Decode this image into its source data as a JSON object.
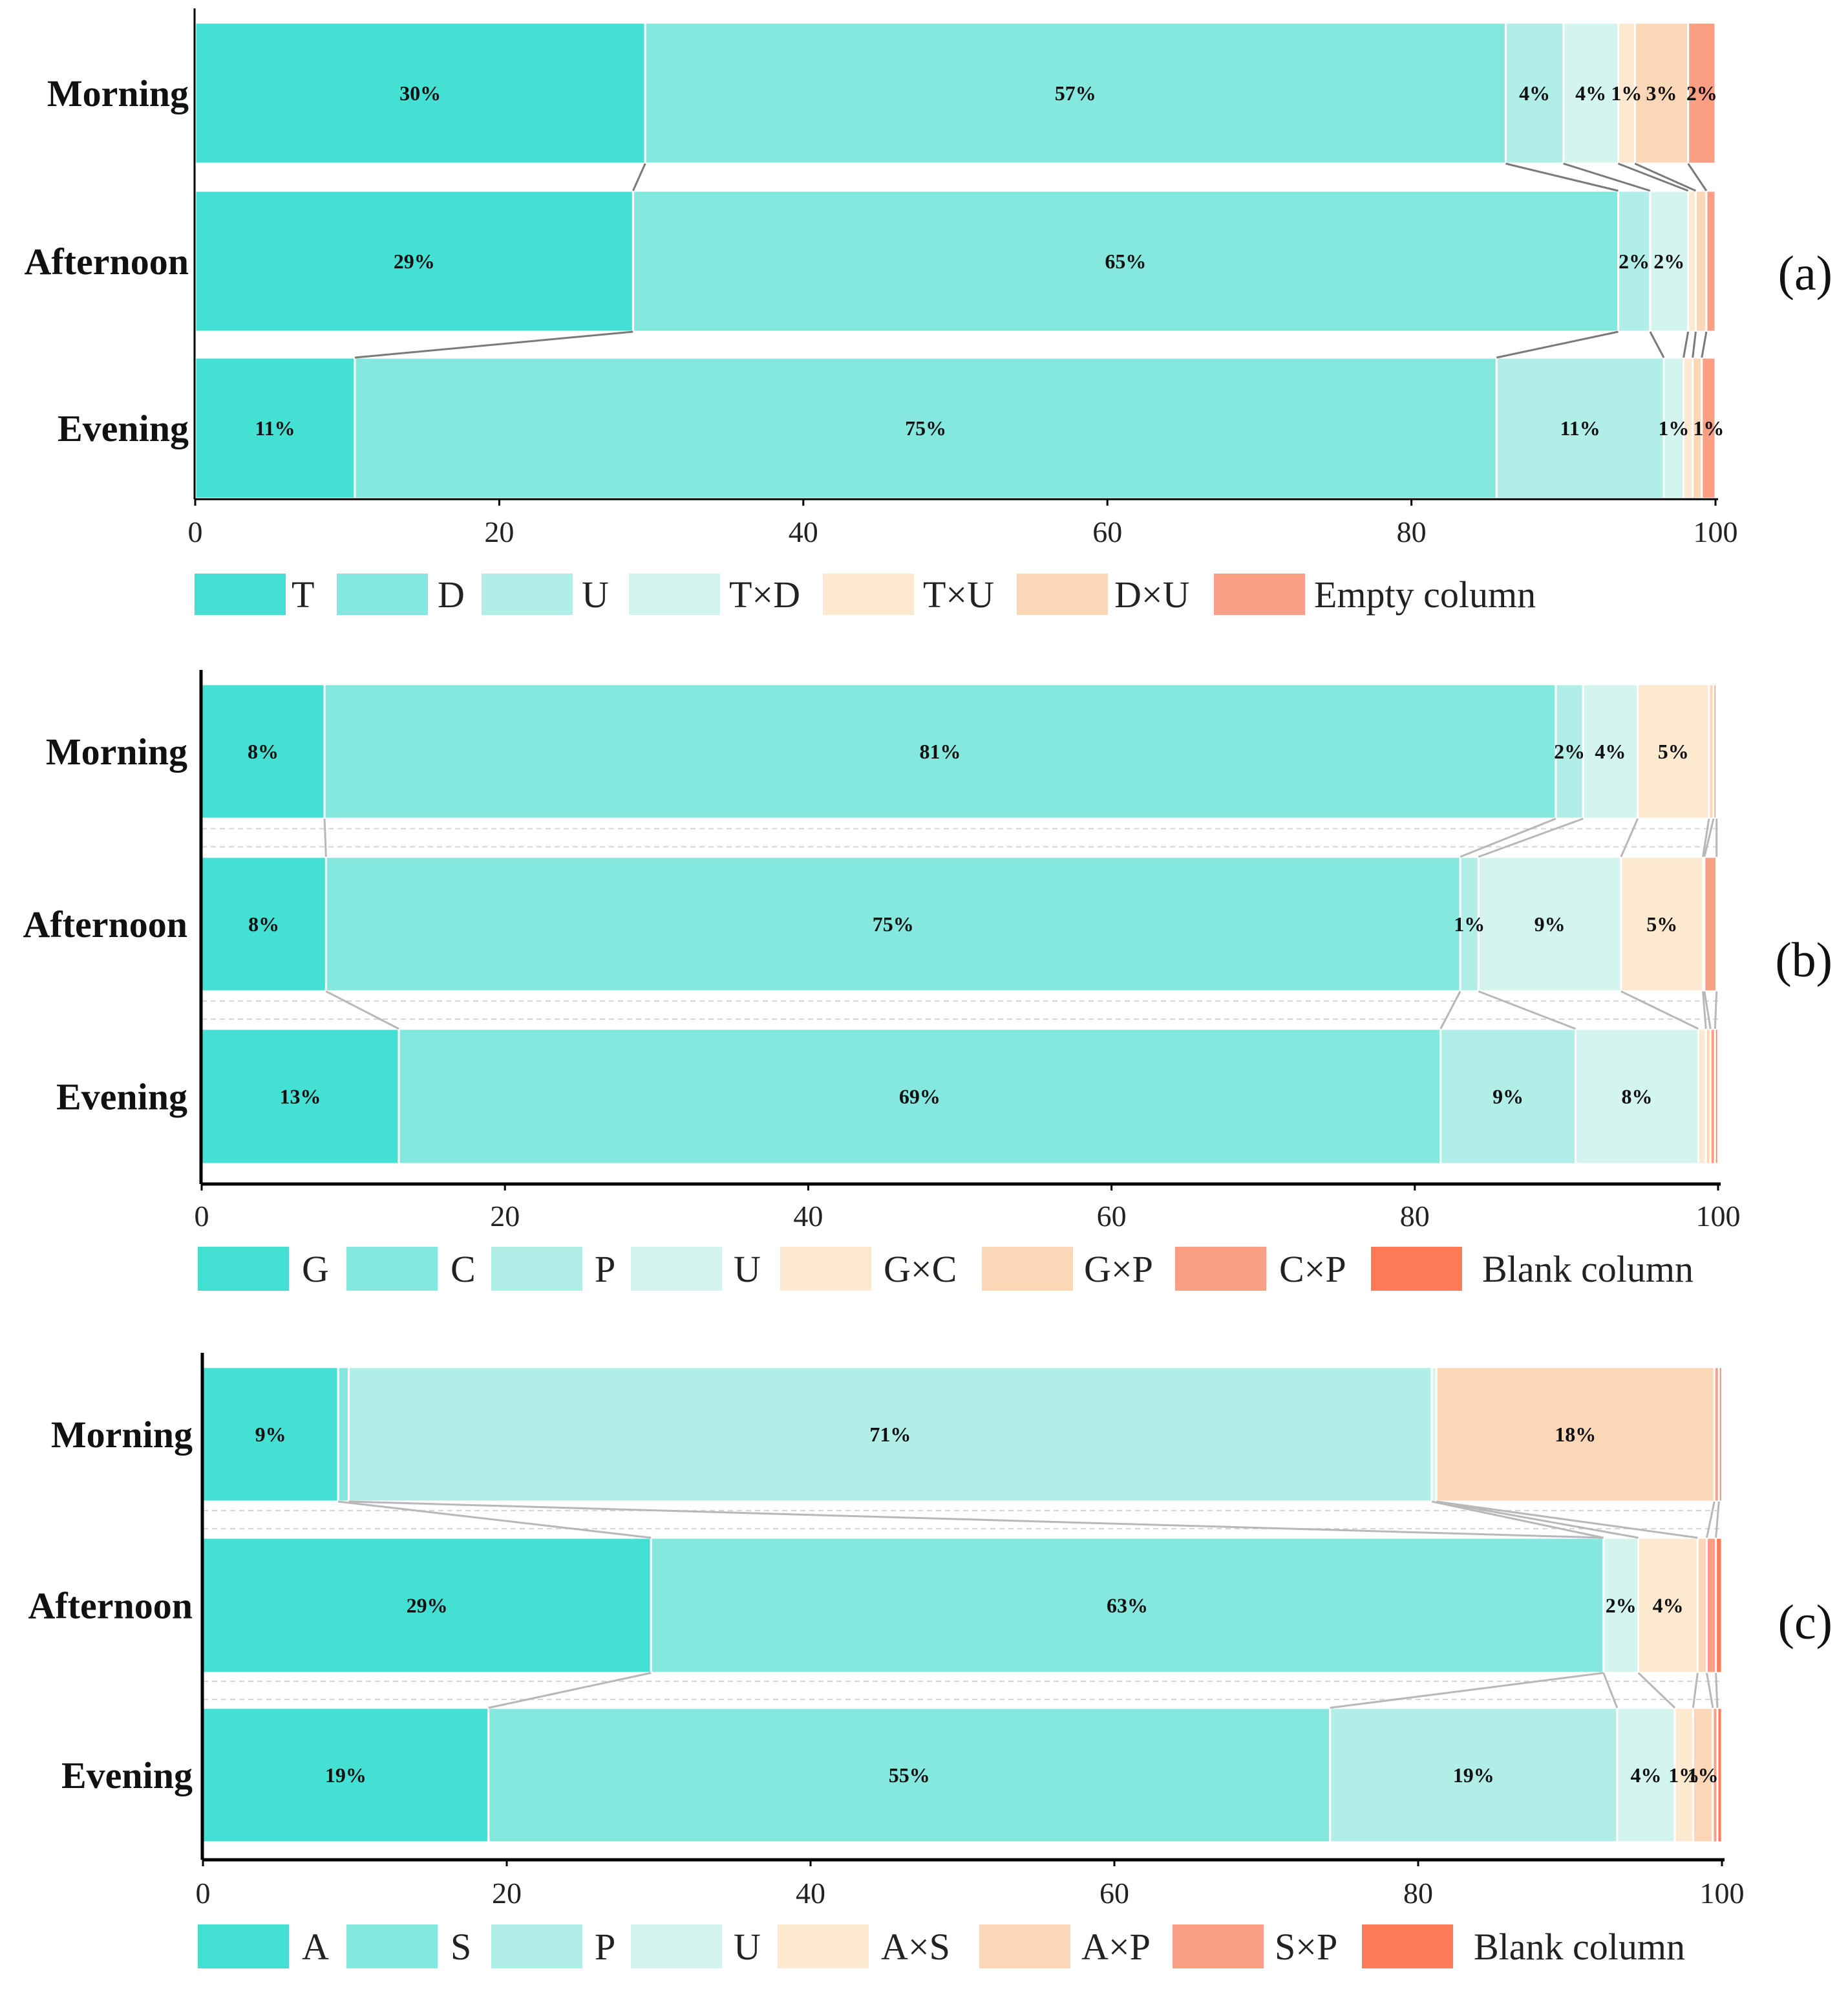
{
  "chart_data": [
    {
      "type": "bar",
      "orientation": "horizontal",
      "stacked": true,
      "panel_label": "(a)",
      "categories": [
        "Morning",
        "Afternoon",
        "Evening"
      ],
      "series": [
        {
          "name": "T",
          "color": "#45E0D4",
          "values": [
            29.6,
            28.8,
            10.5
          ],
          "labels": [
            "30%",
            "29%",
            "11%"
          ]
        },
        {
          "name": "D",
          "color": "#84E8DE",
          "values": [
            56.6,
            64.8,
            75.1
          ],
          "labels": [
            "57%",
            "65%",
            "75%"
          ]
        },
        {
          "name": "U",
          "color": "#B2EEE8",
          "values": [
            3.8,
            2.1,
            11.0
          ],
          "labels": [
            "4%",
            "2%",
            "11%"
          ]
        },
        {
          "name": "T×D",
          "color": "#D4F4EF",
          "values": [
            3.6,
            2.5,
            1.3
          ],
          "labels": [
            "4%",
            "2%",
            "1%"
          ]
        },
        {
          "name": "T×U",
          "color": "#FDE8D0",
          "values": [
            1.1,
            0.5,
            0.6
          ],
          "labels": [
            "1%",
            "",
            ""
          ]
        },
        {
          "name": "D×U",
          "color": "#FCD7B7",
          "values": [
            3.5,
            0.7,
            0.6
          ],
          "labels": [
            "3%",
            "",
            ""
          ]
        },
        {
          "name": "Empty column",
          "color": "#FA9E84",
          "values": [
            1.8,
            0.6,
            0.9
          ],
          "labels": [
            "2%",
            "",
            "1%"
          ]
        }
      ],
      "xlim": [
        0,
        100
      ],
      "xticks": [
        "0",
        "20",
        "40",
        "60",
        "80",
        "100"
      ],
      "legend": "bottom"
    },
    {
      "type": "bar",
      "orientation": "horizontal",
      "stacked": true,
      "panel_label": "(b)",
      "categories": [
        "Morning",
        "Afternoon",
        "Evening"
      ],
      "series": [
        {
          "name": "G",
          "color": "#45E0D4",
          "values": [
            8.1,
            8.2,
            13.0
          ],
          "labels": [
            "8%",
            "8%",
            "13%"
          ]
        },
        {
          "name": "C",
          "color": "#84E8DE",
          "values": [
            81.2,
            74.8,
            68.7
          ],
          "labels": [
            "81%",
            "75%",
            "69%"
          ]
        },
        {
          "name": "P",
          "color": "#B2EEE8",
          "values": [
            1.8,
            1.2,
            8.9
          ],
          "labels": [
            "2%",
            "1%",
            "9%"
          ]
        },
        {
          "name": "U",
          "color": "#D4F4EF",
          "values": [
            3.6,
            9.4,
            8.1
          ],
          "labels": [
            "4%",
            "9%",
            "8%"
          ]
        },
        {
          "name": "G×C",
          "color": "#FDE8D0",
          "values": [
            4.7,
            5.4,
            0.5
          ],
          "labels": [
            "5%",
            "5%",
            ""
          ]
        },
        {
          "name": "G×P",
          "color": "#FCD7B7",
          "values": [
            0.3,
            0.1,
            0.3
          ],
          "labels": [
            "",
            "",
            ""
          ]
        },
        {
          "name": "C×P",
          "color": "#FA9E84",
          "values": [
            0.2,
            0.8,
            0.3
          ],
          "labels": [
            "",
            "",
            ""
          ]
        },
        {
          "name": "Blank column",
          "color": "#FF7A57",
          "values": [
            0.1,
            0.1,
            0.2
          ],
          "labels": [
            "",
            "",
            ""
          ]
        }
      ],
      "xlim": [
        0,
        100
      ],
      "xticks": [
        "0",
        "20",
        "40",
        "60",
        "80",
        "100"
      ],
      "legend": "bottom"
    },
    {
      "type": "bar",
      "orientation": "horizontal",
      "stacked": true,
      "panel_label": "(c)",
      "categories": [
        "Morning",
        "Afternoon",
        "Evening"
      ],
      "series": [
        {
          "name": "A",
          "color": "#45E0D4",
          "values": [
            8.9,
            29.5,
            18.8
          ],
          "labels": [
            "9%",
            "29%",
            "19%"
          ]
        },
        {
          "name": "S",
          "color": "#84E8DE",
          "values": [
            0.7,
            62.7,
            55.4
          ],
          "labels": [
            "",
            "63%",
            "55%"
          ]
        },
        {
          "name": "P",
          "color": "#B2EEE8",
          "values": [
            71.3,
            0.0,
            18.9
          ],
          "labels": [
            "71%",
            "",
            "19%"
          ]
        },
        {
          "name": "U",
          "color": "#D4F4EF",
          "values": [
            0.3,
            2.3,
            3.8
          ],
          "labels": [
            "",
            "2%",
            "4%"
          ]
        },
        {
          "name": "A×S",
          "color": "#FDE8D0",
          "values": [
            0.0,
            3.9,
            1.2
          ],
          "labels": [
            "",
            "4%",
            "1%"
          ]
        },
        {
          "name": "A×P",
          "color": "#FCD7B7",
          "values": [
            18.3,
            0.6,
            1.3
          ],
          "labels": [
            "18%",
            "",
            "1%"
          ]
        },
        {
          "name": "S×P",
          "color": "#FA9E84",
          "values": [
            0.3,
            0.6,
            0.3
          ],
          "labels": [
            "",
            "",
            ""
          ]
        },
        {
          "name": "Blank column",
          "color": "#FF7A57",
          "values": [
            0.2,
            0.4,
            0.3
          ],
          "labels": [
            "",
            "",
            ""
          ]
        }
      ],
      "xlim": [
        0,
        100
      ],
      "xticks": [
        "0",
        "20",
        "40",
        "60",
        "80",
        "100"
      ],
      "legend": "bottom"
    }
  ]
}
